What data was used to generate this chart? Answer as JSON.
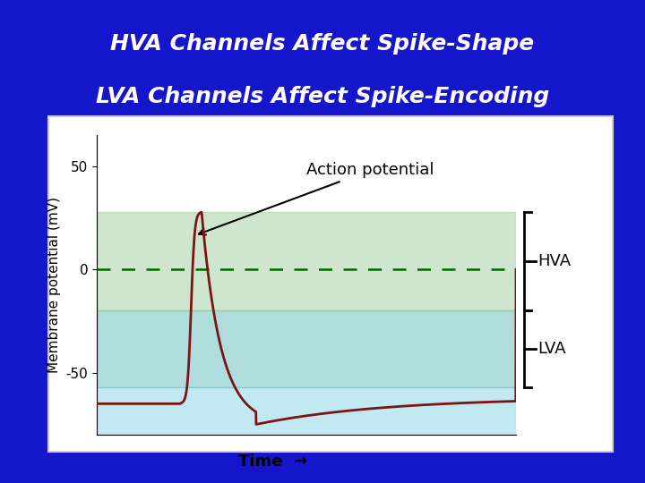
{
  "title_line1": "HVA Channels Affect Spike-Shape",
  "title_line2": "LVA Channels Affect Spike-Encoding",
  "title_color": "#FFFFFF",
  "title_fontsize": 18,
  "bg_color": "#1515CC",
  "panel_bg": "#FFFFFF",
  "ylabel": "Membrane potential (mV)",
  "xlabel": "Time",
  "ylabel_fontsize": 11,
  "xlabel_fontsize": 13,
  "ytick_labels": [
    "-50",
    "0",
    "50"
  ],
  "ytick_vals": [
    -50,
    0,
    50
  ],
  "ylim": [
    -80,
    65
  ],
  "xlim": [
    0,
    10
  ],
  "hva_band_ymin": -20,
  "hva_band_ymax": 28,
  "hva_band_color": "#90C890",
  "hva_band_alpha": 0.45,
  "lva_band_ymin": -57,
  "lva_band_ymax": -20,
  "lva_band_color": "#70C0C0",
  "lva_band_alpha": 0.55,
  "below_band_ymin": -80,
  "below_band_ymax": -57,
  "below_band_color": "#90D8E8",
  "below_band_alpha": 0.55,
  "dashed_line_y": 0,
  "dashed_color": "#006600",
  "spike_color": "#7B1515",
  "spike_linewidth": 2.0,
  "annotation_text": "Action potential",
  "annotation_fontsize": 13,
  "hva_label": "HVA",
  "lva_label": "LVA",
  "bracket_color": "#000000"
}
